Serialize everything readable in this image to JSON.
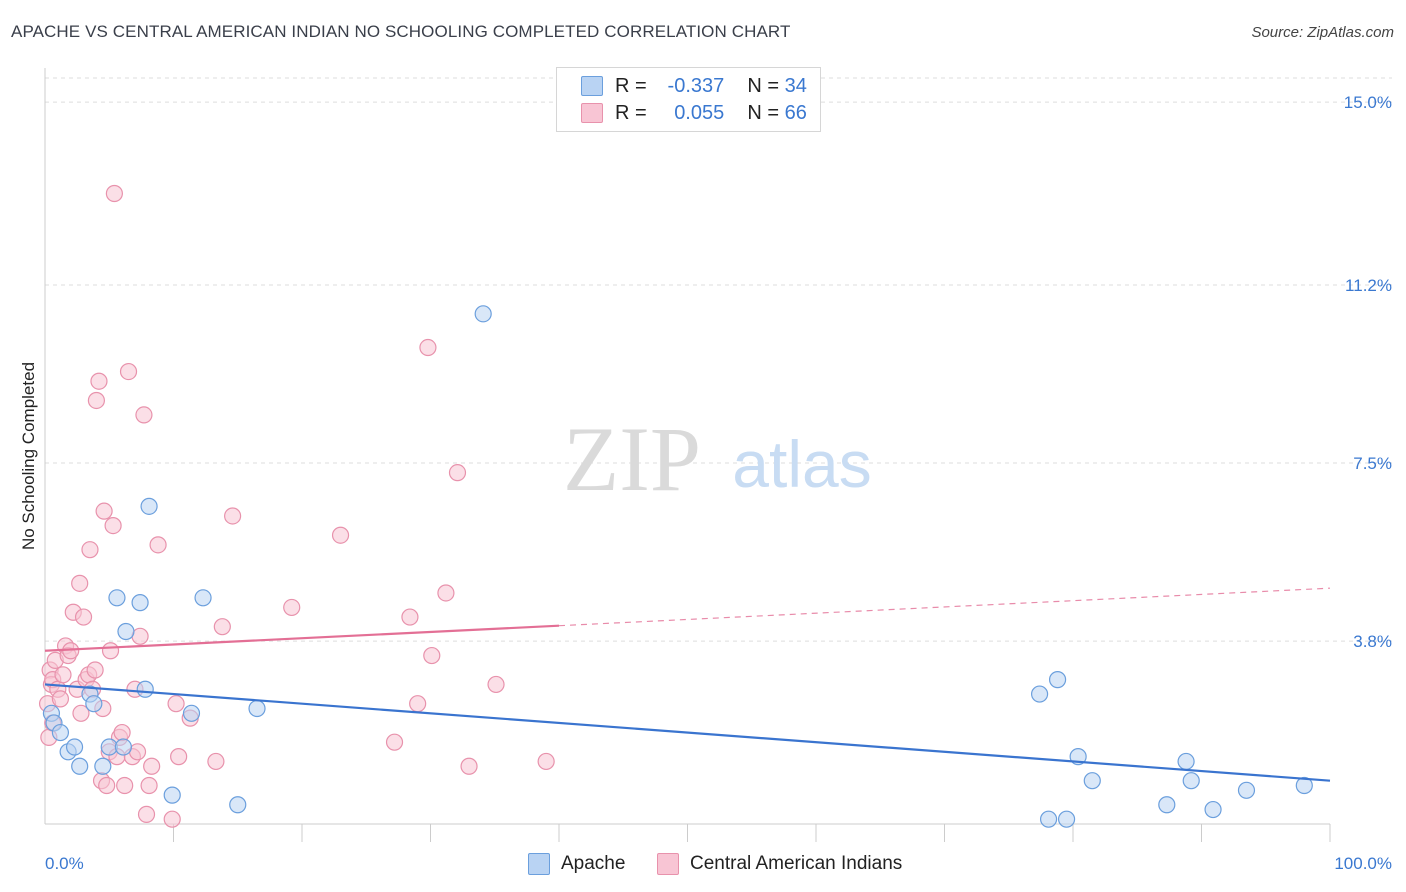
{
  "title": "APACHE VS CENTRAL AMERICAN INDIAN NO SCHOOLING COMPLETED CORRELATION CHART",
  "source": "Source: ZipAtlas.com",
  "watermark": {
    "zip": "ZIP",
    "atlas": "atlas"
  },
  "legend_stats": {
    "apache": {
      "r_label": "R =",
      "r_value": "-0.337",
      "n_label": "N =",
      "n_value": "34"
    },
    "central": {
      "r_label": "R =",
      "r_value": "0.055",
      "n_label": "N =",
      "n_value": "66"
    }
  },
  "colors": {
    "apache_fill": "#b9d3f3",
    "apache_stroke": "#6b9fdd",
    "apache_line": "#3a74cf",
    "central_fill": "#f8c5d4",
    "central_stroke": "#e892ac",
    "central_line": "#e36f95",
    "axis_label": "#3a78d0",
    "grid": "#dddddd"
  },
  "chart_data": {
    "type": "scatter",
    "title": "APACHE VS CENTRAL AMERICAN INDIAN NO SCHOOLING COMPLETED CORRELATION CHART",
    "xlabel": "",
    "ylabel": "No Schooling Completed",
    "xlim": [
      0,
      100
    ],
    "ylim": [
      0,
      15.5
    ],
    "x_tick_labels": {
      "min": "0.0%",
      "max": "100.0%"
    },
    "y_ticks": [
      {
        "value": 3.8,
        "label": "3.8%"
      },
      {
        "value": 7.5,
        "label": "7.5%"
      },
      {
        "value": 11.2,
        "label": "11.2%"
      },
      {
        "value": 15.0,
        "label": "15.0%"
      }
    ],
    "grid": true,
    "legend_position": "bottom-center",
    "series": [
      {
        "name": "Apache",
        "r": -0.337,
        "n": 34,
        "trend": {
          "x0": 0,
          "y0": 2.9,
          "x1": 100,
          "y1": 0.9,
          "solid_to": 100
        },
        "points": [
          [
            0.5,
            2.3
          ],
          [
            0.7,
            2.1
          ],
          [
            1.2,
            1.9
          ],
          [
            1.8,
            1.5
          ],
          [
            2.3,
            1.6
          ],
          [
            2.7,
            1.2
          ],
          [
            3.5,
            2.7
          ],
          [
            3.8,
            2.5
          ],
          [
            4.5,
            1.2
          ],
          [
            5.0,
            1.6
          ],
          [
            5.6,
            4.7
          ],
          [
            6.1,
            1.6
          ],
          [
            6.3,
            4.0
          ],
          [
            7.4,
            4.6
          ],
          [
            7.8,
            2.8
          ],
          [
            8.1,
            6.6
          ],
          [
            9.9,
            0.6
          ],
          [
            11.4,
            2.3
          ],
          [
            12.3,
            4.7
          ],
          [
            15.0,
            0.4
          ],
          [
            16.5,
            2.4
          ],
          [
            34.1,
            10.6
          ],
          [
            77.4,
            2.7
          ],
          [
            78.1,
            0.1
          ],
          [
            78.8,
            3.0
          ],
          [
            79.5,
            0.1
          ],
          [
            80.4,
            1.4
          ],
          [
            81.5,
            0.9
          ],
          [
            87.3,
            0.4
          ],
          [
            88.8,
            1.3
          ],
          [
            89.2,
            0.9
          ],
          [
            90.9,
            0.3
          ],
          [
            93.5,
            0.7
          ],
          [
            98.0,
            0.8
          ]
        ]
      },
      {
        "name": "Central American Indians",
        "r": 0.055,
        "n": 66,
        "trend": {
          "x0": 0,
          "y0": 3.6,
          "x1": 100,
          "y1": 4.9,
          "solid_to": 40
        },
        "points": [
          [
            0.2,
            2.5
          ],
          [
            0.4,
            3.2
          ],
          [
            0.5,
            2.9
          ],
          [
            0.6,
            3.0
          ],
          [
            0.8,
            3.4
          ],
          [
            1.0,
            2.8
          ],
          [
            1.2,
            2.6
          ],
          [
            1.4,
            3.1
          ],
          [
            1.6,
            3.7
          ],
          [
            1.8,
            3.5
          ],
          [
            2.0,
            3.6
          ],
          [
            2.2,
            4.4
          ],
          [
            2.5,
            2.8
          ],
          [
            2.8,
            2.3
          ],
          [
            2.7,
            5.0
          ],
          [
            3.0,
            4.3
          ],
          [
            3.2,
            3.0
          ],
          [
            3.4,
            3.1
          ],
          [
            3.5,
            5.7
          ],
          [
            3.7,
            2.8
          ],
          [
            3.9,
            3.2
          ],
          [
            4.0,
            8.8
          ],
          [
            4.2,
            9.2
          ],
          [
            4.4,
            0.9
          ],
          [
            4.5,
            2.4
          ],
          [
            4.6,
            6.5
          ],
          [
            4.8,
            0.8
          ],
          [
            5.0,
            1.5
          ],
          [
            5.1,
            3.6
          ],
          [
            5.3,
            6.2
          ],
          [
            5.4,
            13.1
          ],
          [
            5.6,
            1.4
          ],
          [
            5.8,
            1.8
          ],
          [
            6.0,
            1.9
          ],
          [
            6.2,
            0.8
          ],
          [
            6.5,
            9.4
          ],
          [
            6.8,
            1.4
          ],
          [
            7.0,
            2.8
          ],
          [
            7.2,
            1.5
          ],
          [
            7.4,
            3.9
          ],
          [
            7.7,
            8.5
          ],
          [
            7.9,
            0.2
          ],
          [
            8.1,
            0.8
          ],
          [
            8.3,
            1.2
          ],
          [
            8.8,
            5.8
          ],
          [
            9.9,
            0.1
          ],
          [
            10.2,
            2.5
          ],
          [
            10.4,
            1.4
          ],
          [
            11.3,
            2.2
          ],
          [
            13.3,
            1.3
          ],
          [
            13.8,
            4.1
          ],
          [
            14.6,
            6.4
          ],
          [
            19.2,
            4.5
          ],
          [
            23.0,
            6.0
          ],
          [
            27.2,
            1.7
          ],
          [
            28.4,
            4.3
          ],
          [
            29.0,
            2.5
          ],
          [
            29.8,
            9.9
          ],
          [
            30.1,
            3.5
          ],
          [
            31.2,
            4.8
          ],
          [
            32.1,
            7.3
          ],
          [
            33.0,
            1.2
          ],
          [
            35.1,
            2.9
          ],
          [
            39.0,
            1.3
          ],
          [
            0.3,
            1.8
          ],
          [
            0.6,
            2.1
          ]
        ]
      }
    ]
  },
  "bottom_legend": [
    {
      "label": "Apache"
    },
    {
      "label": "Central American Indians"
    }
  ]
}
